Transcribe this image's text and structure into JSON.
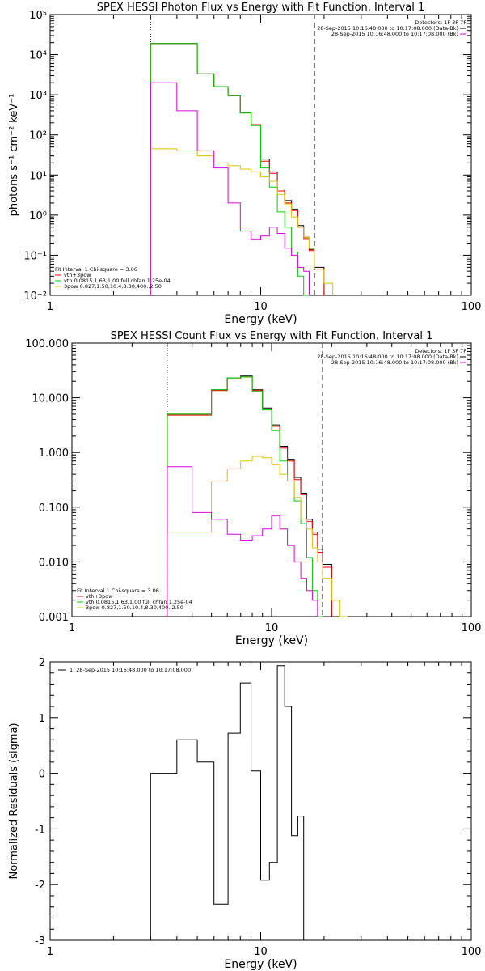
{
  "chart_data": [
    {
      "type": "line",
      "title": "SPEX HESSI Photon Flux vs Energy with Fit Function, Interval 1",
      "xlabel": "Energy (keV)",
      "ylabel": "photons s⁻¹ cm⁻² keV⁻¹",
      "xscale": "log",
      "yscale": "log",
      "xlim": [
        1,
        100
      ],
      "ylim": [
        0.01,
        100000
      ],
      "xticks": [
        "1",
        "10",
        "100"
      ],
      "yticks": [
        "10⁻²",
        "10⁻¹",
        "10⁰",
        "10¹",
        "10²",
        "10³",
        "10⁴",
        "10⁵"
      ],
      "x": [
        3.0,
        4.0,
        5.0,
        6.0,
        7.0,
        8.0,
        9.0,
        10.0,
        11.0,
        12.0,
        13.0,
        14.0,
        15.0,
        16.0,
        17.0,
        18.0,
        20.0,
        22.0
      ],
      "series": [
        {
          "color": "#000000",
          "values": [
            19000,
            19000,
            3300,
            1600,
            950,
            360,
            180,
            25,
            12,
            4.5,
            2.3,
            1.4,
            0.55,
            0.28,
            0.14,
            0.05,
            null,
            null
          ]
        },
        {
          "color": "#ff0000",
          "values": [
            19000,
            19000,
            3300,
            1600,
            950,
            360,
            180,
            22,
            11,
            4.0,
            2.0,
            1.3,
            0.5,
            0.26,
            0.13,
            0.045,
            null,
            null
          ]
        },
        {
          "color": "#00d000",
          "values": [
            19000,
            19000,
            3300,
            1600,
            950,
            350,
            170,
            15,
            5.0,
            1.2,
            0.5,
            0.12,
            0.03,
            0.01,
            null,
            null,
            null,
            null
          ]
        },
        {
          "color": "#e0c000",
          "values": [
            45,
            40,
            30,
            20,
            17,
            14,
            12,
            9,
            7,
            3.3,
            1.9,
            0.9,
            0.5,
            0.28,
            0.15,
            0.045,
            0.02,
            null
          ]
        },
        {
          "color": "#e000e0",
          "values": [
            2000,
            400,
            40,
            15,
            2.0,
            0.4,
            0.25,
            0.3,
            0.5,
            0.35,
            0.15,
            0.1,
            0.05,
            0.04,
            null,
            null,
            null,
            null
          ]
        }
      ],
      "vlines": [
        {
          "x": 3.0,
          "style": "dotted"
        },
        {
          "x": 18.0,
          "style": "dashed"
        }
      ],
      "legend_top": {
        "header": "Detectors: 1F 3F 7F",
        "entries": [
          {
            "label": "28-Sep-2015 10:16:48.000 to 10:17:08.000 (Data-Bk)",
            "color": "#000000"
          },
          {
            "label": "28-Sep-2015 10:16:48.000 to 10:17:08.000 (Bk)",
            "color": "#e000e0"
          }
        ]
      },
      "legend_bottom": {
        "header": "Fit Interval 1   Chi-square = 3.06",
        "entries": [
          {
            "label": "vth+3pow",
            "color": "#ff0000"
          },
          {
            "label": "vth 0.0815,1.63,1.00  full chfan 1.25e-04",
            "color": "#00d000"
          },
          {
            "label": "3pow 0.827,1.50,10.4,8.30,400.,2.50",
            "color": "#e0c000"
          }
        ]
      }
    },
    {
      "type": "line",
      "title": "SPEX HESSI Count Flux vs Energy with Fit Function, Interval 1",
      "xlabel": "Energy (keV)",
      "ylabel": "",
      "xscale": "log",
      "yscale": "log",
      "xlim": [
        1,
        100
      ],
      "ylim": [
        0.001,
        100
      ],
      "xticks": [
        "1",
        "10",
        "100"
      ],
      "yticks": [
        "0.001",
        "0.010",
        "0.100",
        "1.000",
        "10.000",
        "100.000"
      ],
      "x": [
        3.0,
        4.0,
        5.0,
        6.0,
        7.0,
        8.0,
        9.0,
        10.0,
        11.0,
        12.0,
        13.0,
        14.0,
        15.0,
        16.0,
        17.0,
        18.0,
        20.0,
        22.0,
        24.0
      ],
      "series": [
        {
          "color": "#000000",
          "values": [
            5.0,
            5.0,
            14,
            23,
            25,
            14,
            6.5,
            3.2,
            1.3,
            0.75,
            0.35,
            0.18,
            0.06,
            0.035,
            0.017,
            0.009,
            null,
            null,
            null
          ]
        },
        {
          "color": "#ff0000",
          "values": [
            4.8,
            4.8,
            13.5,
            22,
            24,
            13.5,
            6.2,
            3.0,
            1.2,
            0.7,
            0.32,
            0.17,
            0.055,
            0.032,
            0.015,
            0.008,
            null,
            null,
            null
          ]
        },
        {
          "color": "#00d000",
          "values": [
            5.0,
            5.0,
            14,
            23,
            24,
            13,
            6.0,
            2.5,
            0.7,
            0.3,
            0.13,
            0.05,
            0.012,
            0.003,
            0.001,
            null,
            null,
            null,
            null
          ]
        },
        {
          "color": "#e0c000",
          "values": [
            0.035,
            0.035,
            0.3,
            0.5,
            0.7,
            0.85,
            0.8,
            0.6,
            0.4,
            0.3,
            0.15,
            0.06,
            0.04,
            0.018,
            0.01,
            0.005,
            0.002,
            0.001,
            null
          ]
        },
        {
          "color": "#e000e0",
          "values": [
            0.55,
            0.08,
            0.06,
            0.032,
            0.025,
            0.03,
            0.04,
            0.07,
            0.04,
            0.02,
            0.01,
            0.005,
            0.003,
            0.002,
            null,
            null,
            null,
            null,
            null
          ]
        }
      ],
      "vlines": [
        {
          "x": 3.0,
          "style": "dotted"
        },
        {
          "x": 18.0,
          "style": "dashed"
        }
      ],
      "legend_top": {
        "header": "Detectors: 1F 3F 7F",
        "entries": [
          {
            "label": "28-Sep-2015 10:16:48.000 to 10:17:08.000 (Data-Bk)",
            "color": "#000000"
          },
          {
            "label": "28-Sep-2015 10:16:48.000 to 10:17:08.000 (Bk)",
            "color": "#e000e0"
          }
        ]
      },
      "legend_bottom": {
        "header": "Fit Interval 1   Chi-square = 3.06",
        "entries": [
          {
            "label": "vth+3pow",
            "color": "#ff0000"
          },
          {
            "label": "vth 0.0815,1.63,1.00  full chfan 1.25e-04",
            "color": "#00d000"
          },
          {
            "label": "3pow 0.827,1.50,10.4,8.30,400.,2.50",
            "color": "#e0c000"
          }
        ]
      }
    },
    {
      "type": "line",
      "title": "",
      "xlabel": "Energy (keV)",
      "ylabel": "Normalized Residuals (sigma)",
      "xscale": "log",
      "yscale": "linear",
      "xlim": [
        1,
        100
      ],
      "ylim": [
        -3,
        2
      ],
      "xticks": [
        "1",
        "10",
        "100"
      ],
      "yticks": [
        "-3",
        "-2",
        "-1",
        "0",
        "1",
        "2"
      ],
      "x": [
        3.0,
        4.0,
        5.0,
        6.0,
        7.0,
        8.0,
        9.0,
        10.0,
        11.0,
        12.0,
        13.0,
        14.0,
        15.0,
        16.0,
        17.0,
        18.0
      ],
      "series": [
        {
          "color": "#000000",
          "values": [
            0.0,
            0.6,
            0.2,
            -2.35,
            0.72,
            1.62,
            0.04,
            -1.92,
            -1.6,
            1.93,
            1.2,
            -1.12,
            -0.77,
            null,
            null,
            null
          ]
        }
      ],
      "legend_top": {
        "header": "",
        "entries": [
          {
            "label": "1. 28-Sep-2015 10:16:48.000 to 10:17:08.000",
            "color": "#000000"
          }
        ]
      }
    }
  ]
}
